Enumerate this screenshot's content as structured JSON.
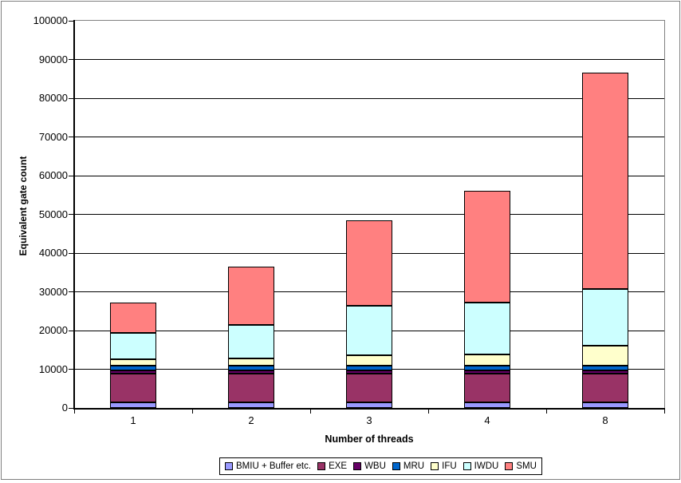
{
  "chart_data": {
    "type": "bar",
    "stacked": true,
    "title": "",
    "xlabel": "Number of threads",
    "ylabel": "Equivalent gate count",
    "categories": [
      "1",
      "2",
      "3",
      "4",
      "8"
    ],
    "series": [
      {
        "name": "BMIU + Buffer etc.",
        "color": "#9999FF",
        "values": [
          1500,
          1500,
          1500,
          1500,
          1500
        ]
      },
      {
        "name": "EXE",
        "color": "#993366",
        "values": [
          7300,
          7300,
          7300,
          7300,
          7300
        ]
      },
      {
        "name": "WBU",
        "color": "#660066",
        "values": [
          900,
          900,
          900,
          900,
          900
        ]
      },
      {
        "name": "MRU",
        "color": "#0066CC",
        "values": [
          1200,
          1200,
          1200,
          1200,
          1200
        ]
      },
      {
        "name": "IFU",
        "color": "#FFFFCC",
        "values": [
          1700,
          1900,
          2700,
          2900,
          5200
        ]
      },
      {
        "name": "IWDU",
        "color": "#CCFFFF",
        "values": [
          6700,
          8700,
          12700,
          13400,
          14600
        ]
      },
      {
        "name": "SMU",
        "color": "#FF8080",
        "values": [
          7900,
          14900,
          22100,
          28900,
          55900
        ]
      }
    ],
    "totals": [
      27200,
      36400,
      48500,
      56200,
      86600
    ],
    "ylim": [
      0,
      100000
    ],
    "ytick_step": 10000,
    "grid": "horizontal",
    "legend_position": "bottom",
    "colors": {
      "gridline": "#000000",
      "plot_border": "#808080",
      "axis": "#000000"
    }
  }
}
